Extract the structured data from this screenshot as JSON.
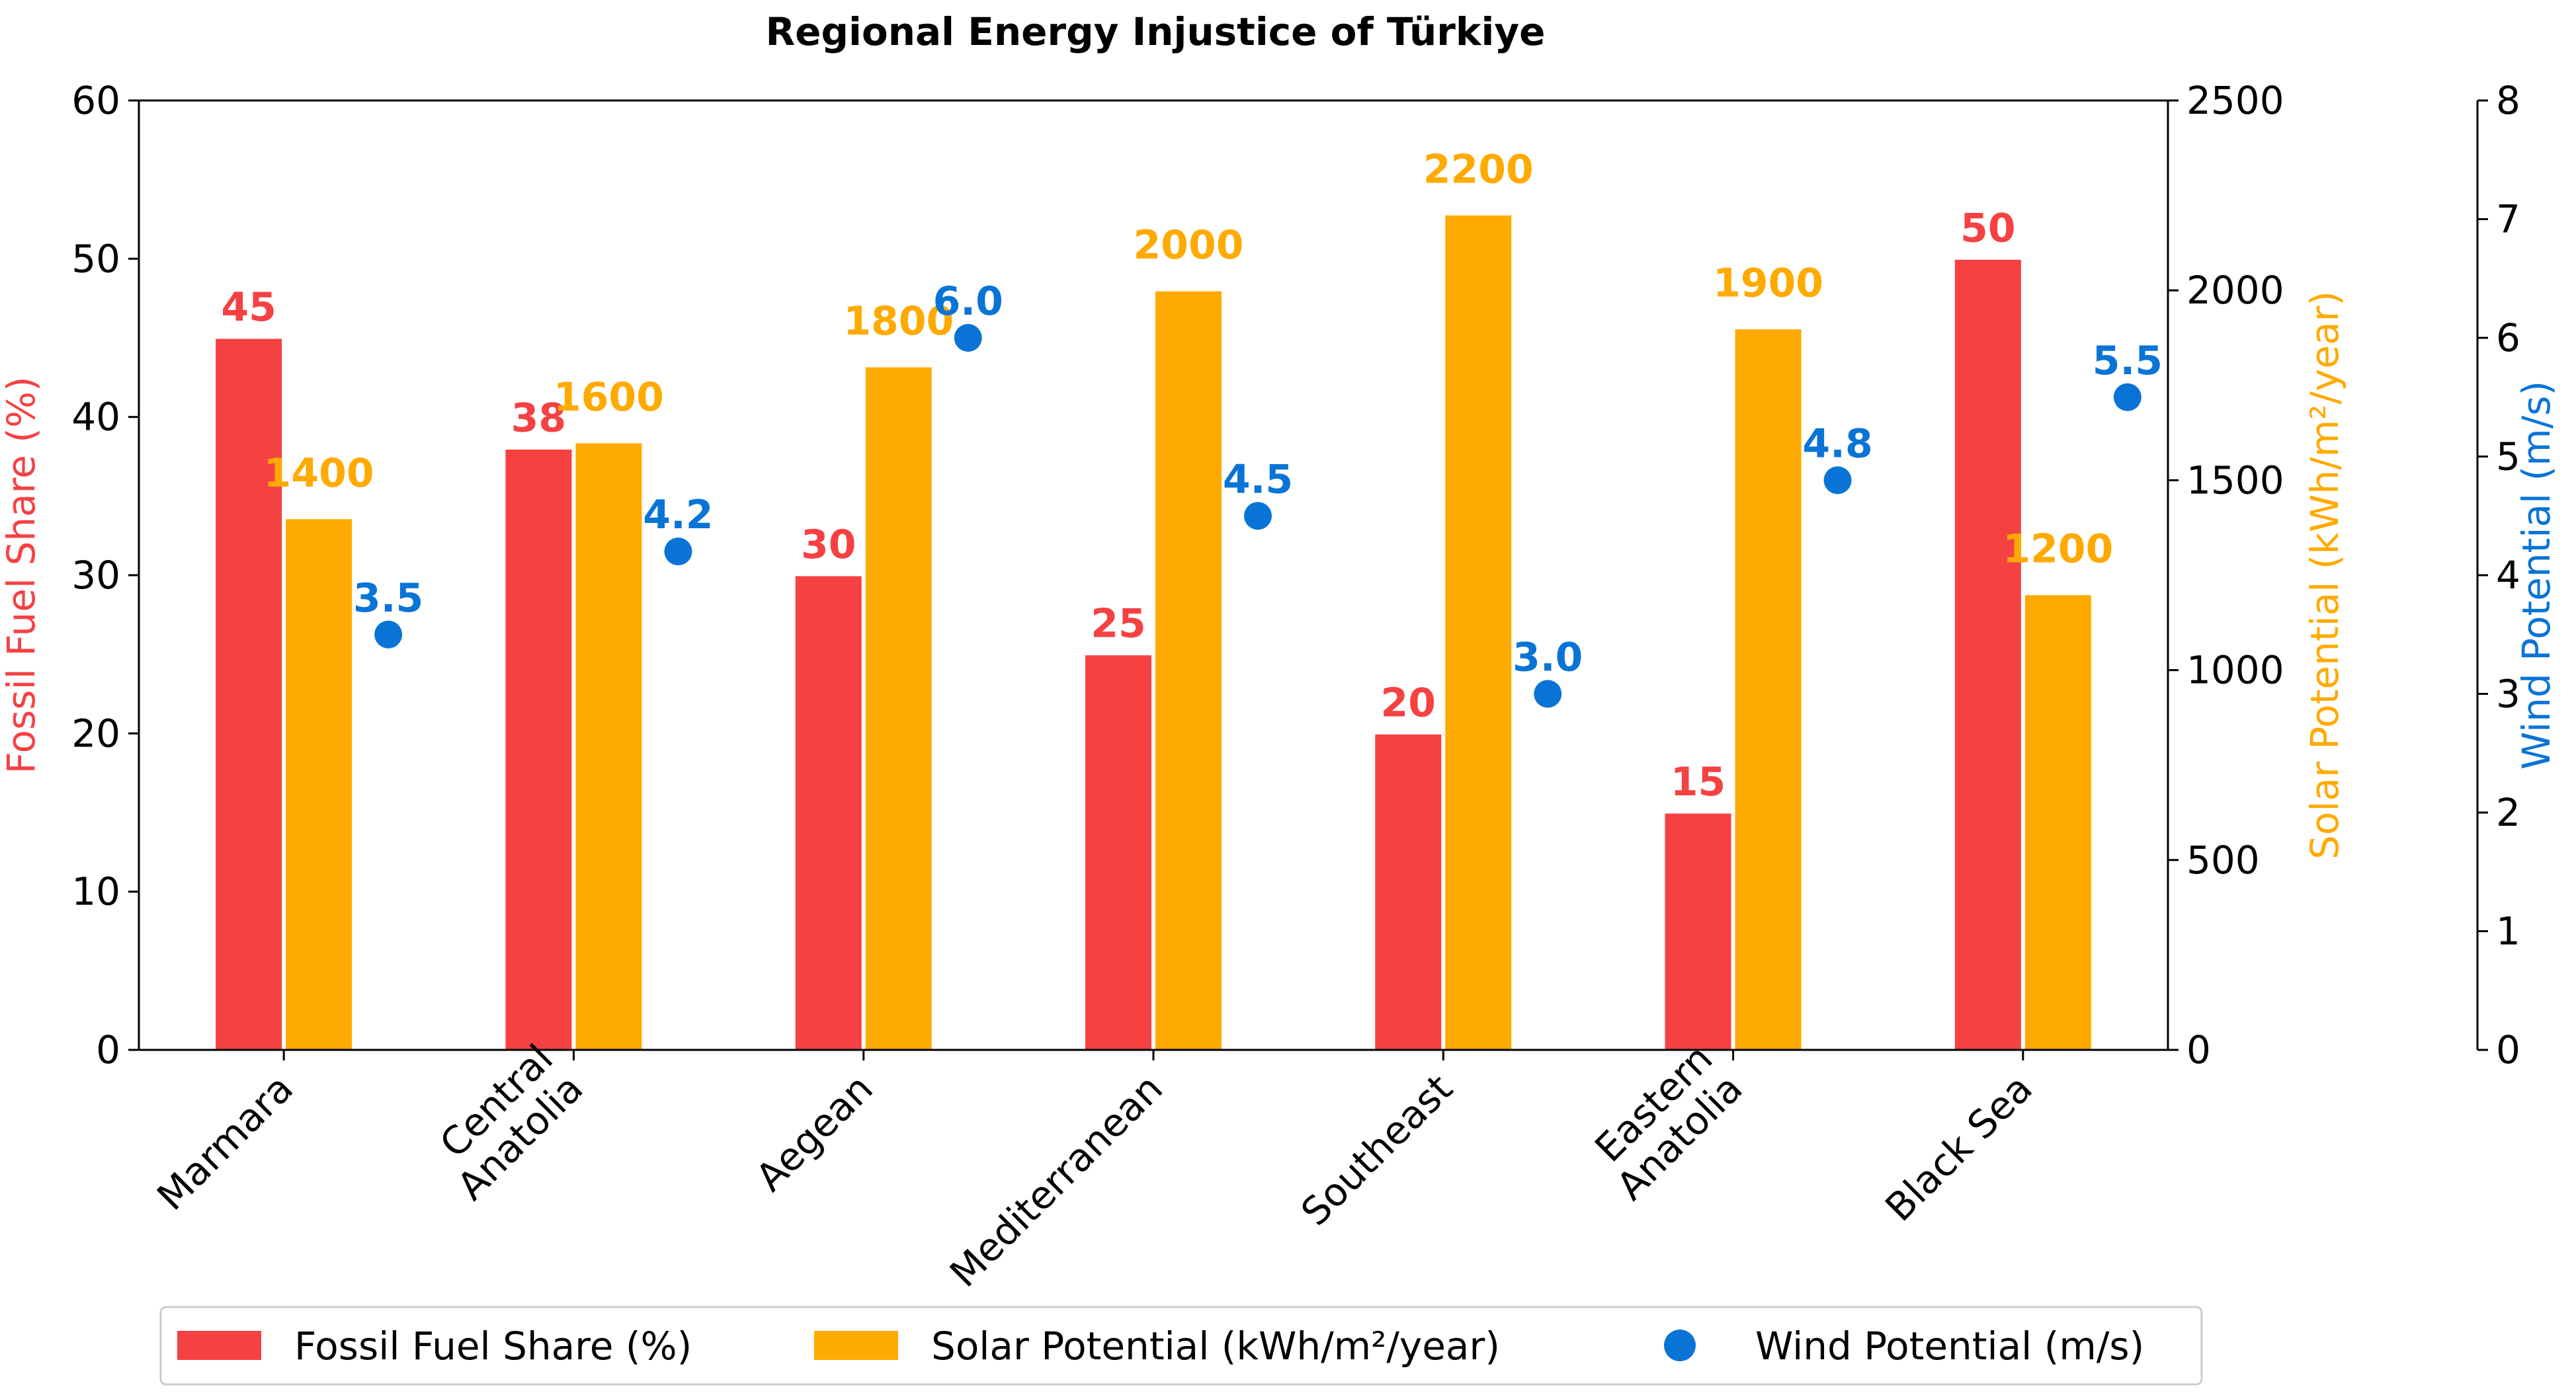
{
  "chart_data": {
    "type": "bar",
    "title": "Regional Energy Injustice of Türkiye",
    "categories": [
      "Marmara",
      "Central Anatolia",
      "Aegean",
      "Mediterranean",
      "Southeast",
      "Eastern Anatolia",
      "Black Sea"
    ],
    "category_lines": [
      [
        "Marmara"
      ],
      [
        "Central",
        "Anatolia"
      ],
      [
        "Aegean"
      ],
      [
        "Mediterranean"
      ],
      [
        "Southeast"
      ],
      [
        "Eastern",
        "Anatolia"
      ],
      [
        "Black Sea"
      ]
    ],
    "series": [
      {
        "name": "Fossil Fuel Share (%)",
        "type": "bar",
        "axis": "left",
        "color": "#f64143",
        "values": [
          45,
          38,
          30,
          25,
          20,
          15,
          50
        ],
        "labels": [
          "45",
          "38",
          "30",
          "25",
          "20",
          "15",
          "50"
        ]
      },
      {
        "name": "Solar Potential (kWh/m²/year)",
        "type": "bar",
        "axis": "right",
        "color": "#ffaa00",
        "values": [
          1400,
          1600,
          1800,
          2000,
          2200,
          1900,
          1200
        ],
        "labels": [
          "1400",
          "1600",
          "1800",
          "2000",
          "2200",
          "1900",
          "1200"
        ]
      },
      {
        "name": "Wind Potential (m/s)",
        "type": "scatter",
        "axis": "wind",
        "color": "#0a74d6",
        "values": [
          3.5,
          4.2,
          6.0,
          4.5,
          3.0,
          4.8,
          5.5
        ],
        "labels": [
          "3.5",
          "4.2",
          "6.0",
          "4.5",
          "3.0",
          "4.8",
          "5.5"
        ]
      }
    ],
    "axes": {
      "left": {
        "label": "Fossil Fuel Share (%)",
        "ylim": [
          0,
          60
        ],
        "ticks": [
          0,
          10,
          20,
          30,
          40,
          50,
          60
        ],
        "color": "#f64143"
      },
      "right": {
        "label": "Solar Potential (kWh/m²/year)",
        "ylim": [
          0,
          2500
        ],
        "ticks": [
          0,
          500,
          1000,
          1500,
          2000,
          2500
        ],
        "color": "#ffaa00"
      },
      "wind": {
        "label": "Wind Potential (m/s)",
        "ylim": [
          0,
          8
        ],
        "ticks": [
          0,
          1,
          2,
          3,
          4,
          5,
          6,
          7,
          8
        ],
        "color": "#0a74d6"
      }
    },
    "grid": false,
    "legend": {
      "location": "bottom-center",
      "entries": [
        "Fossil Fuel Share (%)",
        "Solar Potential (kWh/m²/year)",
        "Wind Potential (m/s)"
      ]
    }
  }
}
